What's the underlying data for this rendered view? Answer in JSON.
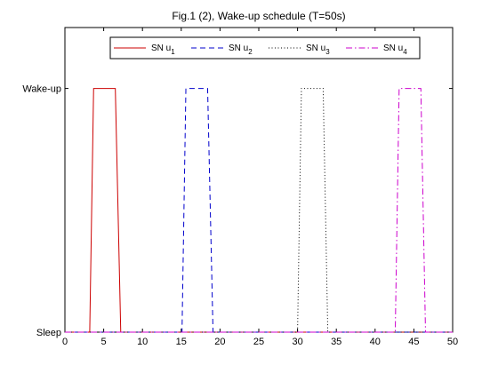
{
  "chart_data": {
    "type": "line",
    "title": "Fig.1 (2), Wake-up schedule (T=50s)",
    "xlabel": "",
    "ylabel": "",
    "xlim": [
      0,
      50
    ],
    "ylim": [
      0,
      1.25
    ],
    "x_ticks": [
      0,
      5,
      10,
      15,
      20,
      25,
      30,
      35,
      40,
      45,
      50
    ],
    "y_ticks": [
      {
        "value": 0,
        "label": "Sleep"
      },
      {
        "value": 1,
        "label": "Wake-up"
      }
    ],
    "grid": false,
    "legend_position": "top-center",
    "series": [
      {
        "name": "SN u",
        "subscript": "1",
        "color": "#cc0000",
        "dash": "solid",
        "x": [
          0,
          3.2,
          3.7,
          6.5,
          7.2,
          50
        ],
        "y": [
          0,
          0,
          1,
          1,
          0,
          0
        ]
      },
      {
        "name": "SN u",
        "subscript": "2",
        "color": "#0000cc",
        "dash": "dashed",
        "x": [
          0,
          15.1,
          15.6,
          18.4,
          19.1,
          50
        ],
        "y": [
          0,
          0,
          1,
          1,
          0,
          0
        ]
      },
      {
        "name": "SN u",
        "subscript": "3",
        "color": "#000000",
        "dash": "dotted",
        "x": [
          0,
          30.0,
          30.5,
          33.3,
          33.9,
          50
        ],
        "y": [
          0,
          0,
          1,
          1,
          0,
          0
        ]
      },
      {
        "name": "SN u",
        "subscript": "4",
        "color": "#cc00cc",
        "dash": "dashdot",
        "x": [
          0,
          42.6,
          43.1,
          45.9,
          46.5,
          50
        ],
        "y": [
          0,
          0,
          1,
          1,
          0,
          0
        ]
      }
    ]
  }
}
